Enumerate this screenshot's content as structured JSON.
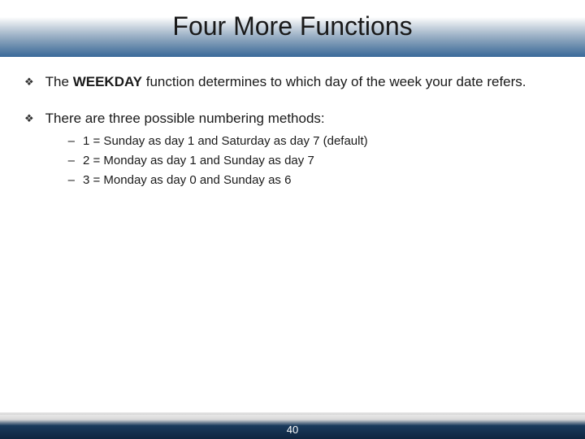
{
  "slide": {
    "title": "Four More Functions",
    "page_number": "40",
    "colors": {
      "header_gradient_start": "#1a3a5c",
      "header_gradient_end": "#3a6a9a",
      "footer_gradient_start": "#e8e8e8",
      "footer_gradient_end": "#0f2540",
      "background": "#ffffff",
      "text": "#1a1a1a",
      "footer_text": "#ffffff"
    },
    "typography": {
      "title_fontsize": 32,
      "bullet_fontsize": 17,
      "sub_fontsize": 15,
      "footer_fontsize": 13,
      "font_family": "Arial"
    },
    "bullets": [
      {
        "prefix": "The ",
        "bold": "WEEKDAY",
        "suffix": " function determines to which day of the week your date refers.",
        "sub_items": []
      },
      {
        "prefix": "",
        "bold": "",
        "suffix": "There are three possible numbering methods:",
        "sub_items": [
          "1 = Sunday as day 1 and Saturday as day 7 (default)",
          "2 = Monday as day 1 and Sunday as day 7",
          "3 = Monday as day 0 and Sunday as 6"
        ]
      }
    ]
  }
}
